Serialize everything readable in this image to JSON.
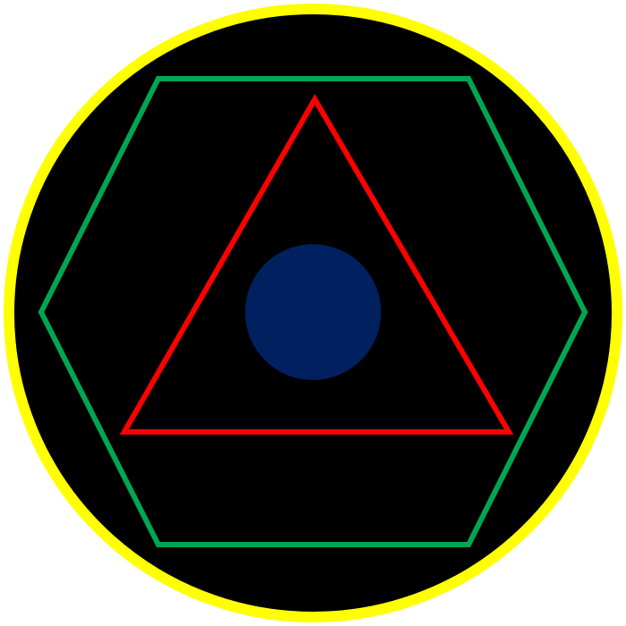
{
  "figure": {
    "background": "#ffffff",
    "shapes": {
      "outer_circle": {
        "name": "outer-circle",
        "fill": "#000000",
        "stroke": "#ffff00"
      },
      "hexagon": {
        "name": "green-hexagon",
        "fill": "none",
        "stroke": "#00a651"
      },
      "triangle": {
        "name": "red-triangle",
        "fill": "none",
        "stroke": "#ff0000"
      },
      "center_dot": {
        "name": "center-dot",
        "fill": "#002060",
        "stroke": "none"
      }
    }
  }
}
